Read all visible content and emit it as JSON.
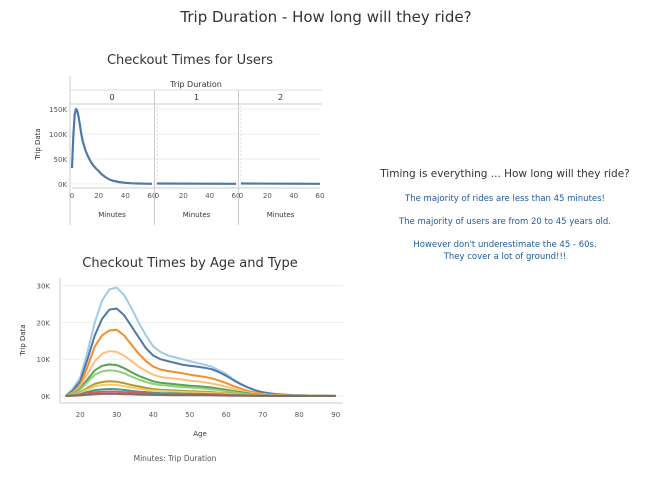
{
  "page_title": "Trip Duration - How long will they ride?",
  "notes": {
    "heading": "Timing is everything ... How long will they ride?",
    "line1": "The majority of rides are less than 45 minutes!",
    "line2": "The majority of users are from 20 to 45 years old.",
    "line3": "However don't underestimate the 45 - 60s.",
    "line4": "They cover a lot of ground!!!"
  },
  "caption": "Minutes: Trip Duration",
  "chart_data": [
    {
      "type": "line",
      "title": "Checkout Times for Users",
      "column_header": "Trip Duration",
      "panels": [
        "0",
        "1",
        "2"
      ],
      "xlabel": "Minutes",
      "ylabel": "Trip Data",
      "xticks": [
        "0",
        "20",
        "40",
        "60"
      ],
      "yticks": [
        "150K",
        "100K",
        "50K",
        "0K"
      ],
      "ylim": [
        0,
        160000
      ],
      "xlim": [
        0,
        60
      ],
      "line_color": "#4e79a7",
      "series": [
        {
          "panel": "0",
          "x": [
            0,
            1,
            2,
            3,
            4,
            5,
            6,
            7,
            8,
            10,
            12,
            14,
            16,
            18,
            20,
            22,
            25,
            28,
            30,
            35,
            40,
            45,
            50,
            55,
            60
          ],
          "y": [
            32000,
            95000,
            140000,
            150000,
            146000,
            133000,
            117000,
            100000,
            86000,
            68000,
            55000,
            45000,
            37000,
            31000,
            26000,
            20000,
            14000,
            9000,
            7000,
            4000,
            2500,
            1500,
            1000,
            700,
            500
          ]
        },
        {
          "panel": "1",
          "x": [
            0,
            60
          ],
          "y": [
            1000,
            500
          ]
        },
        {
          "panel": "2",
          "x": [
            0,
            60
          ],
          "y": [
            1000,
            500
          ]
        }
      ]
    },
    {
      "type": "line",
      "title": "Checkout Times by Age and Type",
      "xlabel": "Age",
      "ylabel": "Trip Data",
      "xticks": [
        "20",
        "30",
        "40",
        "50",
        "60",
        "70",
        "80",
        "90"
      ],
      "yticks": [
        "30K",
        "20K",
        "10K",
        "0K"
      ],
      "xlim": [
        15,
        92
      ],
      "ylim": [
        0,
        31000
      ],
      "x": [
        16,
        18,
        20,
        22,
        24,
        26,
        28,
        30,
        32,
        34,
        36,
        38,
        40,
        42,
        44,
        46,
        48,
        50,
        52,
        54,
        56,
        58,
        60,
        62,
        64,
        66,
        68,
        70,
        72,
        74,
        76,
        78,
        80,
        82,
        84,
        86,
        88,
        90
      ],
      "series": [
        {
          "color": "#a0cbe8",
          "y": [
            0,
            2000,
            5000,
            12000,
            20000,
            26000,
            29000,
            29500,
            27500,
            24000,
            20000,
            16500,
            13500,
            12000,
            11000,
            10500,
            10000,
            9500,
            9000,
            8500,
            8000,
            7000,
            6000,
            4500,
            3300,
            2300,
            1600,
            1000,
            700,
            500,
            350,
            250,
            200,
            150,
            100,
            80,
            60,
            50
          ]
        },
        {
          "color": "#4e79a7",
          "y": [
            0,
            1500,
            4000,
            10000,
            16500,
            21000,
            23500,
            23800,
            22000,
            19000,
            16000,
            13000,
            11000,
            10000,
            9500,
            9000,
            8500,
            8200,
            8000,
            7700,
            7300,
            6500,
            5500,
            4300,
            3200,
            2300,
            1500,
            1000,
            700,
            500,
            350,
            250,
            200,
            150,
            100,
            80,
            60,
            50
          ]
        },
        {
          "color": "#f28e2b",
          "y": [
            0,
            1000,
            3000,
            8000,
            13500,
            16500,
            17800,
            18000,
            16500,
            14000,
            11500,
            9500,
            8000,
            7200,
            6800,
            6500,
            6200,
            5800,
            5500,
            5200,
            4800,
            4200,
            3500,
            2700,
            2000,
            1400,
            900,
            600,
            400,
            300,
            200,
            150,
            100,
            80,
            60,
            50,
            40,
            30
          ]
        },
        {
          "color": "#ffbe7d",
          "y": [
            0,
            800,
            2500,
            6000,
            9500,
            11500,
            12200,
            12000,
            11000,
            9500,
            8000,
            6800,
            5800,
            5200,
            4900,
            4700,
            4500,
            4200,
            4000,
            3700,
            3400,
            3000,
            2500,
            1900,
            1400,
            1000,
            650,
            450,
            300,
            200,
            150,
            100,
            80,
            60,
            50,
            40,
            30,
            20
          ]
        },
        {
          "color": "#59a14f",
          "y": [
            0,
            600,
            2000,
            4500,
            7000,
            8200,
            8600,
            8400,
            7600,
            6500,
            5500,
            4700,
            4000,
            3600,
            3400,
            3200,
            3000,
            2800,
            2700,
            2500,
            2300,
            2000,
            1700,
            1300,
            1000,
            700,
            450,
            300,
            200,
            150,
            100,
            80,
            60,
            50,
            40,
            30,
            20,
            10
          ]
        },
        {
          "color": "#8cd17d",
          "y": [
            0,
            500,
            1700,
            3800,
            5800,
            6700,
            7000,
            6800,
            6200,
            5300,
            4500,
            3800,
            3300,
            3000,
            2800,
            2600,
            2400,
            2300,
            2200,
            2000,
            1800,
            1600,
            1300,
            1000,
            750,
            550,
            350,
            250,
            150,
            100,
            80,
            60,
            50,
            40,
            30,
            20,
            10,
            10
          ]
        },
        {
          "color": "#b6992d",
          "y": [
            0,
            300,
            1000,
            2200,
            3300,
            3800,
            4000,
            3900,
            3500,
            3000,
            2600,
            2200,
            1900,
            1700,
            1600,
            1500,
            1400,
            1300,
            1250,
            1150,
            1050,
            900,
            750,
            600,
            450,
            300,
            200,
            150,
            100,
            70,
            50,
            40,
            30,
            20,
            15,
            10,
            10,
            5
          ]
        },
        {
          "color": "#f1ce63",
          "y": [
            0,
            250,
            800,
            1800,
            2600,
            3000,
            3100,
            3000,
            2700,
            2300,
            2000,
            1700,
            1500,
            1350,
            1250,
            1150,
            1100,
            1000,
            950,
            900,
            800,
            700,
            600,
            450,
            350,
            250,
            170,
            120,
            80,
            60,
            40,
            30,
            20,
            15,
            10,
            10,
            5,
            5
          ]
        },
        {
          "color": "#499894",
          "y": [
            0,
            150,
            500,
            1100,
            1600,
            1800,
            1900,
            1850,
            1650,
            1400,
            1200,
            1050,
            900,
            800,
            750,
            700,
            650,
            600,
            580,
            550,
            500,
            430,
            360,
            280,
            210,
            150,
            100,
            70,
            50,
            35,
            25,
            20,
            15,
            10,
            8,
            5,
            5,
            3
          ]
        },
        {
          "color": "#e15759",
          "y": [
            0,
            100,
            300,
            700,
            1000,
            1150,
            1200,
            1150,
            1050,
            900,
            780,
            680,
            590,
            530,
            490,
            460,
            430,
            400,
            380,
            360,
            330,
            290,
            240,
            190,
            140,
            100,
            70,
            50,
            35,
            25,
            20,
            15,
            10,
            8,
            6,
            5,
            4,
            3
          ]
        },
        {
          "color": "#79706e",
          "y": [
            0,
            50,
            150,
            350,
            500,
            580,
            600,
            580,
            520,
            450,
            390,
            340,
            300,
            270,
            250,
            230,
            215,
            200,
            190,
            180,
            165,
            145,
            120,
            95,
            70,
            50,
            35,
            25,
            18,
            12,
            10,
            8,
            5,
            4,
            3,
            2,
            2,
            1
          ]
        }
      ]
    }
  ]
}
